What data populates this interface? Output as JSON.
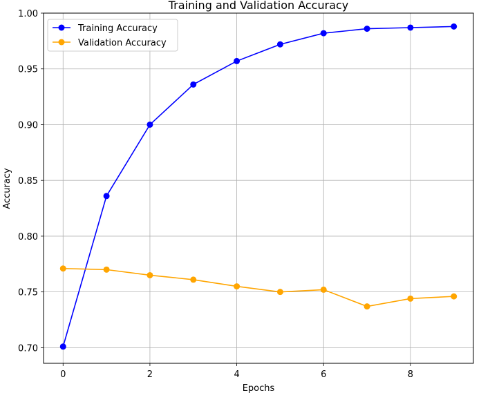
{
  "chart_data": {
    "type": "line",
    "title": "Training and Validation Accuracy",
    "xlabel": "Epochs",
    "ylabel": "Accuracy",
    "xlim": [
      -0.45,
      9.45
    ],
    "ylim": [
      0.686,
      1.0
    ],
    "xticks": [
      0,
      2,
      4,
      6,
      8
    ],
    "yticks": [
      0.7,
      0.75,
      0.8,
      0.85,
      0.9,
      0.95,
      1.0
    ],
    "ytick_labels": [
      "0.70",
      "0.75",
      "0.80",
      "0.85",
      "0.90",
      "0.95",
      "1.00"
    ],
    "grid": true,
    "legend_position": "top-left",
    "x": [
      0,
      1,
      2,
      3,
      4,
      5,
      6,
      7,
      8,
      9
    ],
    "series": [
      {
        "name": "Training Accuracy",
        "color": "#0000ff",
        "values": [
          0.701,
          0.836,
          0.9,
          0.936,
          0.957,
          0.972,
          0.982,
          0.986,
          0.987,
          0.988
        ]
      },
      {
        "name": "Validation Accuracy",
        "color": "#ffa500",
        "values": [
          0.771,
          0.77,
          0.765,
          0.761,
          0.755,
          0.75,
          0.752,
          0.737,
          0.744,
          0.746
        ]
      }
    ]
  }
}
